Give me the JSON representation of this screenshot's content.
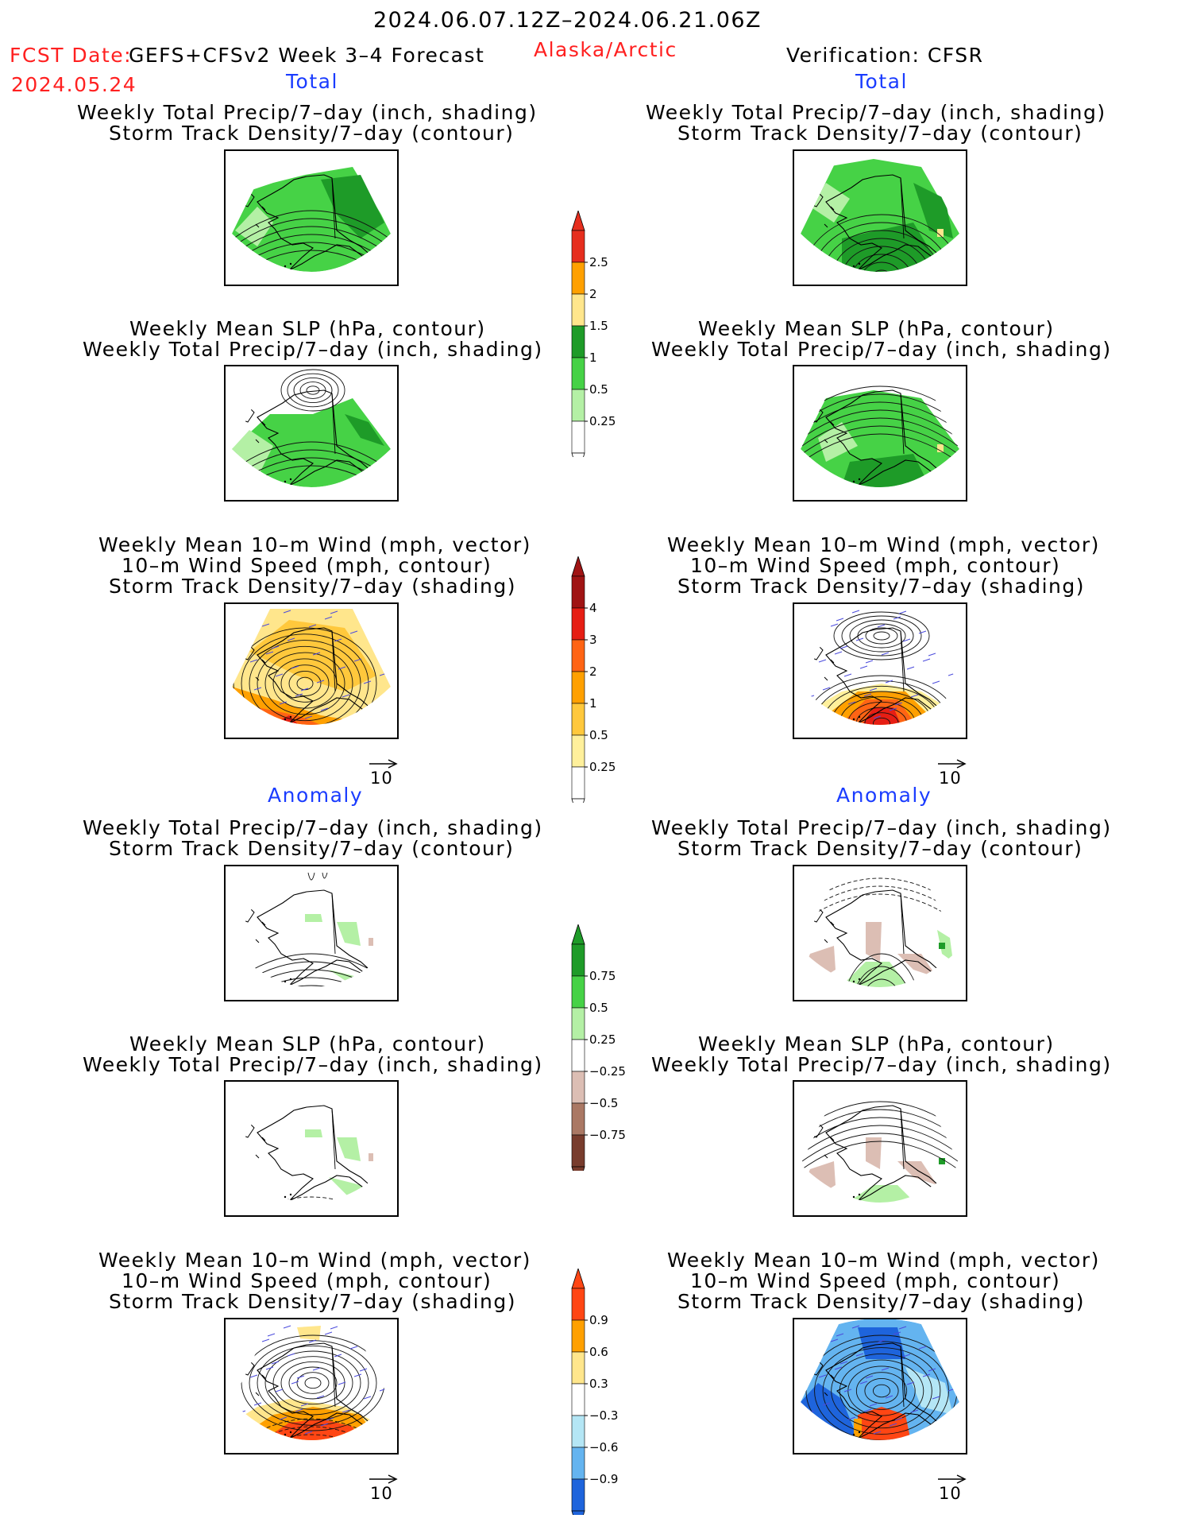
{
  "header": {
    "date_range": "2024.06.07.12Z–2024.06.21.06Z",
    "fcst_label": "FCST Date:",
    "model": "GEFS+CFSv2 Week 3–4 Forecast",
    "region": "Alaska/Arctic",
    "verification": "Verification: CFSR",
    "fcst_date": "2024.05.24"
  },
  "sections": {
    "total_left": "Total",
    "total_right": "Total",
    "anomaly_left": "Anomaly",
    "anomaly_right": "Anomaly"
  },
  "titles": {
    "precip_storm": [
      "Weekly Total Precip/7–day (inch, shading)",
      "Storm Track Density/7–day (contour)"
    ],
    "slp_precip": [
      "Weekly Mean SLP (hPa, contour)",
      "Weekly Total Precip/7–day (inch, shading)"
    ],
    "wind": [
      "Weekly Mean 10–m Wind (mph, vector)",
      "10–m Wind Speed (mph, contour)",
      "Storm Track Density/7–day (shading)"
    ]
  },
  "vector_scale": "10",
  "colorbars": {
    "precip_total": {
      "labels": [
        "2.5",
        "2",
        "1.5",
        "1",
        "0.5",
        "0.25"
      ],
      "colors": [
        "#e62e1e",
        "#ffa000",
        "#ffe68c",
        "#1e9b28",
        "#46d246",
        "#b4f0a5",
        "#ffffff"
      ]
    },
    "storm_total": {
      "labels": [
        "4",
        "3",
        "2",
        "1",
        "0.5",
        "0.25"
      ],
      "colors": [
        "#a01414",
        "#e61e14",
        "#ff6414",
        "#ffa000",
        "#ffc83c",
        "#fff09b",
        "#ffffff"
      ]
    },
    "precip_anom": {
      "labels": [
        "0.75",
        "0.5",
        "0.25",
        "−0.25",
        "−0.5",
        "−0.75"
      ],
      "colors": [
        "#1e9b28",
        "#46d246",
        "#b4f0a5",
        "#ffffff",
        "#dcbeb4",
        "#aa7864",
        "#783c2d"
      ]
    },
    "storm_anom": {
      "labels": [
        "0.9",
        "0.6",
        "0.3",
        "−0.3",
        "−0.6",
        "−0.9"
      ],
      "colors": [
        "#ff4614",
        "#ffa000",
        "#ffe68c",
        "#ffffff",
        "#b4e6f5",
        "#64b4f0",
        "#1e64dc"
      ]
    }
  },
  "map_colors": {
    "green_light": "#b4f0a5",
    "green_mid": "#46d246",
    "green_dark": "#1e9b28",
    "yellow": "#ffe68c",
    "orange": "#ffa000",
    "red": "#e61e14",
    "darkred": "#a01414",
    "brown": "#dcbeb4",
    "blue_light": "#b4e6f5",
    "blue_mid": "#64b4f0",
    "blue_dark": "#1e64dc",
    "vector": "#4b4bdc"
  }
}
